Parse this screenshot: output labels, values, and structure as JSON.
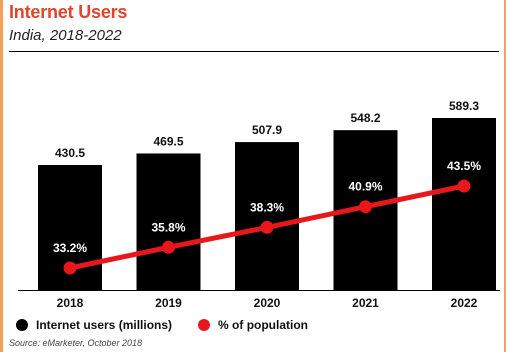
{
  "header": {
    "title": "Internet Users",
    "subtitle": "India, 2018-2022"
  },
  "colors": {
    "bar": "#000000",
    "line": "#e8171c",
    "title": "#e0452a"
  },
  "legend": {
    "bars_label": "Internet users (millions)",
    "line_label": "% of population"
  },
  "source": "Source: eMarketer, October 2018",
  "chart_data": {
    "type": "bar",
    "categories": [
      "2018",
      "2019",
      "2020",
      "2021",
      "2022"
    ],
    "series": [
      {
        "name": "Internet users (millions)",
        "type": "bar",
        "values": [
          430.5,
          469.5,
          507.9,
          548.2,
          589.3
        ],
        "labels": [
          "430.5",
          "469.5",
          "507.9",
          "548.2",
          "589.3"
        ]
      },
      {
        "name": "% of population",
        "type": "line",
        "values": [
          33.2,
          35.8,
          38.3,
          40.9,
          43.5
        ],
        "labels": [
          "33.2%",
          "35.8%",
          "38.3%",
          "40.9%",
          "43.5%"
        ]
      }
    ],
    "title": "Internet Users",
    "subtitle": "India, 2018-2022",
    "legend_position": "bottom-left",
    "grid": false
  }
}
